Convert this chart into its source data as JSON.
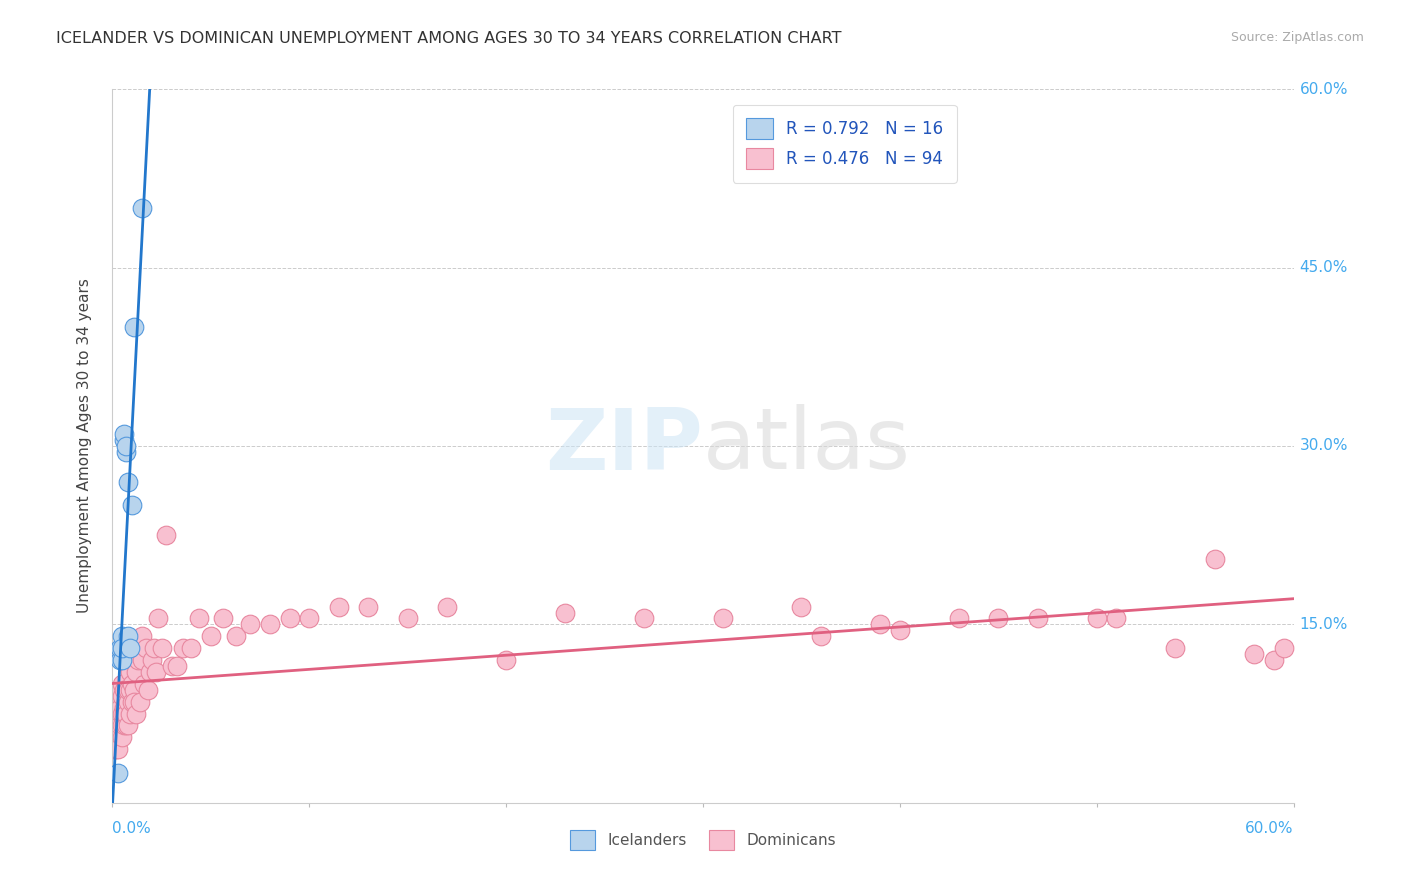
{
  "title": "ICELANDER VS DOMINICAN UNEMPLOYMENT AMONG AGES 30 TO 34 YEARS CORRELATION CHART",
  "source": "Source: ZipAtlas.com",
  "ylabel": "Unemployment Among Ages 30 to 34 years",
  "xlim": [
    0.0,
    0.6
  ],
  "ylim": [
    0.0,
    0.6
  ],
  "icelander_color": "#b8d4ed",
  "icelander_edge_color": "#5599dd",
  "icelander_line_color": "#2277cc",
  "dominican_color": "#f8c0d0",
  "dominican_edge_color": "#e888a0",
  "dominican_line_color": "#e06080",
  "label_color": "#44aaee",
  "legend_R_iceland": "R = 0.792",
  "legend_N_iceland": "N = 16",
  "legend_R_dominican": "R = 0.476",
  "legend_N_dominican": "N = 94",
  "icelander_x": [
    0.003,
    0.004,
    0.004,
    0.005,
    0.005,
    0.005,
    0.006,
    0.006,
    0.007,
    0.007,
    0.008,
    0.008,
    0.009,
    0.01,
    0.011,
    0.015
  ],
  "icelander_y": [
    0.025,
    0.12,
    0.13,
    0.12,
    0.14,
    0.13,
    0.305,
    0.31,
    0.295,
    0.3,
    0.14,
    0.27,
    0.13,
    0.25,
    0.4,
    0.5
  ],
  "dominican_x": [
    0.001,
    0.001,
    0.001,
    0.002,
    0.002,
    0.002,
    0.002,
    0.003,
    0.003,
    0.003,
    0.003,
    0.003,
    0.004,
    0.004,
    0.004,
    0.004,
    0.005,
    0.005,
    0.005,
    0.005,
    0.005,
    0.006,
    0.006,
    0.006,
    0.006,
    0.007,
    0.007,
    0.007,
    0.007,
    0.008,
    0.008,
    0.008,
    0.008,
    0.009,
    0.009,
    0.009,
    0.01,
    0.01,
    0.01,
    0.011,
    0.011,
    0.011,
    0.012,
    0.012,
    0.013,
    0.013,
    0.014,
    0.014,
    0.015,
    0.015,
    0.016,
    0.017,
    0.018,
    0.019,
    0.02,
    0.021,
    0.022,
    0.023,
    0.025,
    0.027,
    0.03,
    0.033,
    0.036,
    0.04,
    0.044,
    0.05,
    0.056,
    0.063,
    0.07,
    0.08,
    0.09,
    0.1,
    0.115,
    0.13,
    0.15,
    0.17,
    0.2,
    0.23,
    0.27,
    0.31,
    0.35,
    0.39,
    0.43,
    0.47,
    0.51,
    0.54,
    0.56,
    0.58,
    0.59,
    0.595,
    0.5,
    0.45,
    0.4,
    0.36
  ],
  "dominican_y": [
    0.055,
    0.07,
    0.045,
    0.06,
    0.07,
    0.055,
    0.045,
    0.065,
    0.055,
    0.07,
    0.09,
    0.045,
    0.075,
    0.065,
    0.08,
    0.095,
    0.075,
    0.09,
    0.065,
    0.1,
    0.055,
    0.08,
    0.095,
    0.065,
    0.075,
    0.085,
    0.095,
    0.065,
    0.075,
    0.085,
    0.125,
    0.065,
    0.095,
    0.075,
    0.11,
    0.095,
    0.1,
    0.13,
    0.085,
    0.095,
    0.13,
    0.085,
    0.075,
    0.11,
    0.12,
    0.13,
    0.085,
    0.13,
    0.12,
    0.14,
    0.1,
    0.13,
    0.095,
    0.11,
    0.12,
    0.13,
    0.11,
    0.155,
    0.13,
    0.225,
    0.115,
    0.115,
    0.13,
    0.13,
    0.155,
    0.14,
    0.155,
    0.14,
    0.15,
    0.15,
    0.155,
    0.155,
    0.165,
    0.165,
    0.155,
    0.165,
    0.12,
    0.16,
    0.155,
    0.155,
    0.165,
    0.15,
    0.155,
    0.155,
    0.155,
    0.13,
    0.205,
    0.125,
    0.12,
    0.13,
    0.155,
    0.155,
    0.145,
    0.14
  ]
}
